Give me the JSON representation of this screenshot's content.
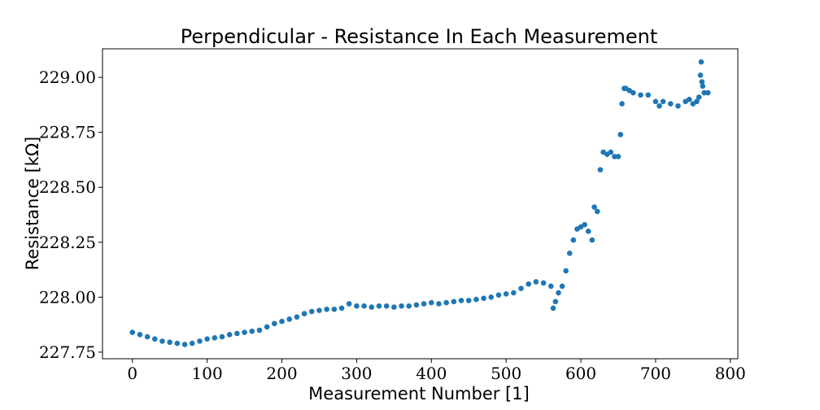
{
  "chart_data": {
    "type": "scatter",
    "title": "Perpendicular - Resistance In Each Measurement",
    "xlabel": "Measurement Number [1]",
    "ylabel": "Resistance [kΩ]",
    "xlim": [
      -40,
      810
    ],
    "ylim": [
      227.72,
      229.13
    ],
    "x_ticks": [
      0,
      100,
      200,
      300,
      400,
      500,
      600,
      700,
      800
    ],
    "x_tick_labels": [
      "0",
      "100",
      "200",
      "300",
      "400",
      "500",
      "600",
      "700",
      "800"
    ],
    "y_ticks": [
      227.75,
      228.0,
      228.25,
      228.5,
      228.75,
      229.0
    ],
    "y_tick_labels": [
      "227.75",
      "228.00",
      "228.25",
      "228.50",
      "228.75",
      "229.00"
    ],
    "grid": false,
    "marker_color": "#1f77b4",
    "series": [
      {
        "x": [
          0,
          10,
          20,
          30,
          40,
          50,
          60,
          70,
          80,
          90,
          100,
          110,
          120,
          130,
          140,
          150,
          160,
          170,
          180,
          190,
          200,
          210,
          220,
          230,
          240,
          250,
          260,
          270,
          280,
          290,
          300,
          310,
          320,
          330,
          340,
          350,
          360,
          370,
          380,
          390,
          400,
          410,
          420,
          430,
          440,
          450,
          460,
          470,
          480,
          490,
          500,
          510,
          520,
          530,
          540,
          550,
          560,
          563,
          566,
          570,
          575,
          580,
          585,
          590,
          595,
          600,
          605,
          610,
          615,
          618,
          622,
          626,
          630,
          635,
          640,
          645,
          650,
          653,
          655,
          658,
          660,
          665,
          670,
          680,
          690,
          700,
          705,
          710,
          720,
          730,
          740,
          745,
          750,
          755,
          758,
          760,
          761,
          762,
          763,
          765,
          770
        ],
        "y": [
          227.84,
          227.83,
          227.82,
          227.81,
          227.8,
          227.795,
          227.79,
          227.785,
          227.79,
          227.8,
          227.81,
          227.815,
          227.82,
          227.83,
          227.835,
          227.84,
          227.845,
          227.85,
          227.865,
          227.88,
          227.89,
          227.9,
          227.91,
          227.925,
          227.935,
          227.94,
          227.945,
          227.945,
          227.95,
          227.97,
          227.96,
          227.96,
          227.955,
          227.96,
          227.96,
          227.955,
          227.96,
          227.96,
          227.965,
          227.97,
          227.975,
          227.97,
          227.975,
          227.98,
          227.985,
          227.985,
          227.99,
          227.995,
          228.0,
          228.01,
          228.015,
          228.02,
          228.04,
          228.06,
          228.07,
          228.065,
          228.05,
          227.95,
          227.98,
          228.02,
          228.05,
          228.12,
          228.2,
          228.26,
          228.31,
          228.32,
          228.33,
          228.3,
          228.26,
          228.41,
          228.39,
          228.58,
          228.66,
          228.65,
          228.66,
          228.64,
          228.64,
          228.74,
          228.88,
          228.95,
          228.95,
          228.94,
          228.93,
          228.92,
          228.92,
          228.89,
          228.87,
          228.89,
          228.88,
          228.87,
          228.89,
          228.9,
          228.88,
          228.89,
          228.91,
          229.01,
          229.07,
          228.98,
          228.96,
          228.93,
          228.93
        ]
      }
    ]
  }
}
